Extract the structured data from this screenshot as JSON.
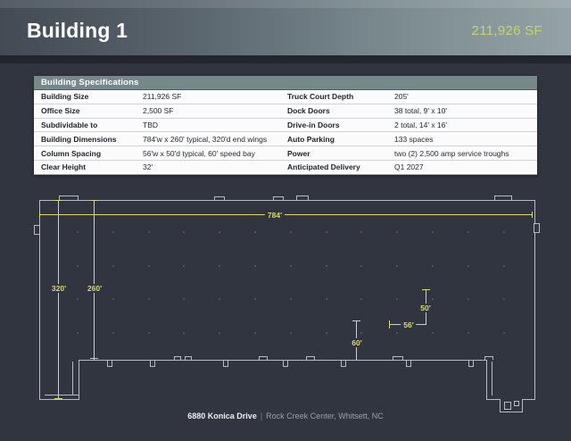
{
  "header": {
    "title": "Building 1",
    "size_label": "211,926 SF"
  },
  "table": {
    "title": "Building Specifications",
    "rows": [
      {
        "label1": "Building Size",
        "value1": "211,926 SF",
        "label2": "Truck Court Depth",
        "value2": "205'"
      },
      {
        "label1": "Office Size",
        "value1": "2,500 SF",
        "label2": "Dock Doors",
        "value2": "38 total, 9' x 10'"
      },
      {
        "label1": "Subdividable to",
        "value1": "TBD",
        "label2": "Drive-in Doors",
        "value2": "2 total, 14' x 16'"
      },
      {
        "label1": "Building Dimensions",
        "value1": "784'w x 260' typical, 320'd end wings",
        "label2": "Auto Parking",
        "value2": "133 spaces"
      },
      {
        "label1": "Column Spacing",
        "value1": "56'w x 50'd typical, 60' speed bay",
        "label2": "Power",
        "value2": "two (2) 2,500 amp service troughs"
      },
      {
        "label1": "Clear Height",
        "value1": "32'",
        "label2": "Anticipated Delivery",
        "value2": "Q1 2027"
      }
    ]
  },
  "plan": {
    "dimensions": {
      "width": "784'",
      "wing_depth": "320'",
      "typical_depth": "260'",
      "speed_bay": "60'",
      "bay_width": "56'",
      "bay_depth": "50'"
    },
    "grid": {
      "columns": 13,
      "rows": 4
    }
  },
  "footer": {
    "address": "6880 Konica Drive",
    "separator": "|",
    "location": "Rock Creek Center, Whitsett, NC"
  },
  "colors": {
    "page-bg": "#31353f",
    "accent-yellow": "#dcda6c",
    "header-sf": "#c9d16e",
    "table-header-bg": "#75898b",
    "plan-line": "#b7bcc3",
    "dot": "#4e545f"
  }
}
